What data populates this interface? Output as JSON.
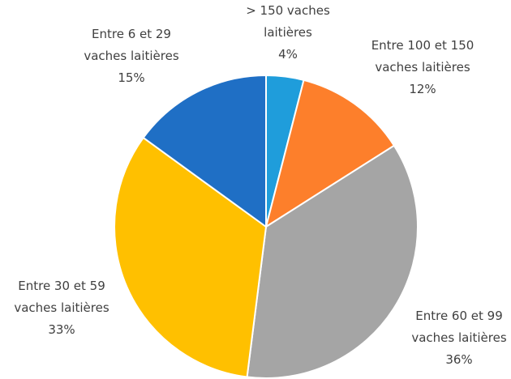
{
  "chart_data": {
    "type": "pie",
    "categories": [
      "> 150 vaches laitières",
      "Entre 100 et 150 vaches laitières",
      "Entre 60 et 99 vaches laitières",
      "Entre 30 et 59 vaches laitières",
      "Entre 6 et 29 vaches laitières"
    ],
    "values": [
      4,
      12,
      36,
      33,
      15
    ],
    "value_labels": [
      "4%",
      "12%",
      "36%",
      "33%",
      "15%"
    ],
    "colors": [
      "#1f9ddb",
      "#fd7f2b",
      "#a5a5a5",
      "#ffc000",
      "#1f6fc5"
    ]
  }
}
